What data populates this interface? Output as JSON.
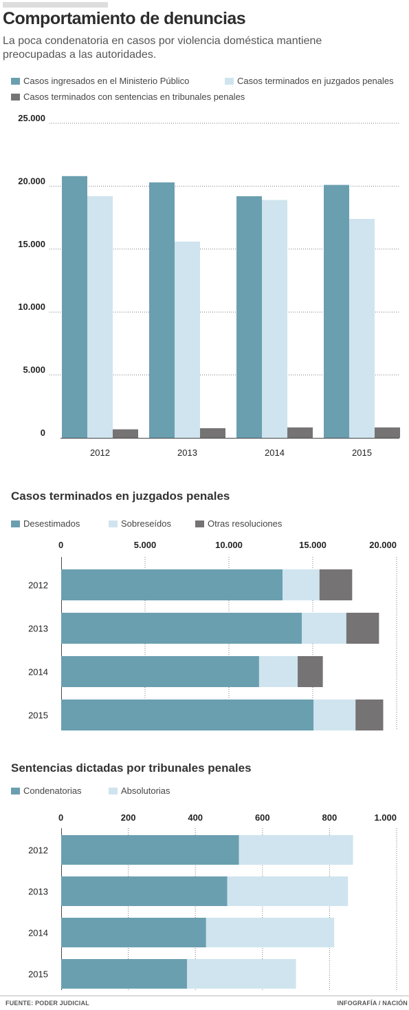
{
  "title": "Comportamiento de denuncias",
  "subtitle": "La poca condenatoria en casos por violencia doméstica mantiene preocupadas a las autoridades.",
  "colors": {
    "teal": "#6a9fb0",
    "light": "#cfe4ee",
    "gray": "#767374"
  },
  "chart1": {
    "legend": [
      "Casos ingresados en el Ministerio Público",
      "Casos terminados en juzgados penales",
      "Casos terminados con sentencias en tribunales penales"
    ]
  },
  "chart2": {
    "title": "Casos terminados en juzgados penales",
    "legend": [
      "Desestimados",
      "Sobreseídos",
      "Otras resoluciones"
    ]
  },
  "chart3": {
    "title": "Sentencias dictadas por tribunales penales",
    "legend": [
      "Condenatorias",
      "Absolutorias"
    ]
  },
  "footer": {
    "source": "FUENTE: PODER JUDICIAL",
    "credit": "INFOGRAFÍA / NACIÓN"
  },
  "chart_data": [
    {
      "type": "bar",
      "categories": [
        "2012",
        "2013",
        "2014",
        "2015"
      ],
      "series": [
        {
          "name": "Casos ingresados en el Ministerio Público",
          "values": [
            20800,
            20300,
            19200,
            20100
          ]
        },
        {
          "name": "Casos terminados en juzgados penales",
          "values": [
            19200,
            15600,
            18900,
            17400
          ]
        },
        {
          "name": "Casos terminados con sentencias en tribunales penales",
          "values": [
            680,
            770,
            830,
            830
          ]
        }
      ],
      "yticks": [
        "0",
        "5.000",
        "10.000",
        "15.000",
        "20.000",
        "25.000"
      ],
      "ylim": [
        0,
        25000
      ]
    },
    {
      "type": "bar",
      "orientation": "horizontal",
      "stacked": true,
      "title": "Casos terminados en juzgados penales",
      "categories": [
        "2012",
        "2013",
        "2014",
        "2015"
      ],
      "series": [
        {
          "name": "Desestimados",
          "values": [
            13200,
            14350,
            11800,
            15050
          ]
        },
        {
          "name": "Sobreseídos",
          "values": [
            2200,
            2650,
            2300,
            2500
          ]
        },
        {
          "name": "Otras resoluciones",
          "values": [
            1950,
            1950,
            1500,
            1650
          ]
        }
      ],
      "xticks": [
        "0",
        "5.000",
        "10.000",
        "15.000",
        "20.000"
      ],
      "xlim": [
        0,
        20000
      ]
    },
    {
      "type": "bar",
      "orientation": "horizontal",
      "stacked": true,
      "title": "Sentencias dictadas por tribunales penales",
      "categories": [
        "2012",
        "2013",
        "2014",
        "2015"
      ],
      "series": [
        {
          "name": "Condenatorias",
          "values": [
            530,
            495,
            432,
            375
          ]
        },
        {
          "name": "Absolutorias",
          "values": [
            340,
            360,
            382,
            325
          ]
        }
      ],
      "xticks": [
        "0",
        "200",
        "400",
        "600",
        "800",
        "1.000"
      ],
      "xlim": [
        0,
        1000
      ]
    }
  ]
}
